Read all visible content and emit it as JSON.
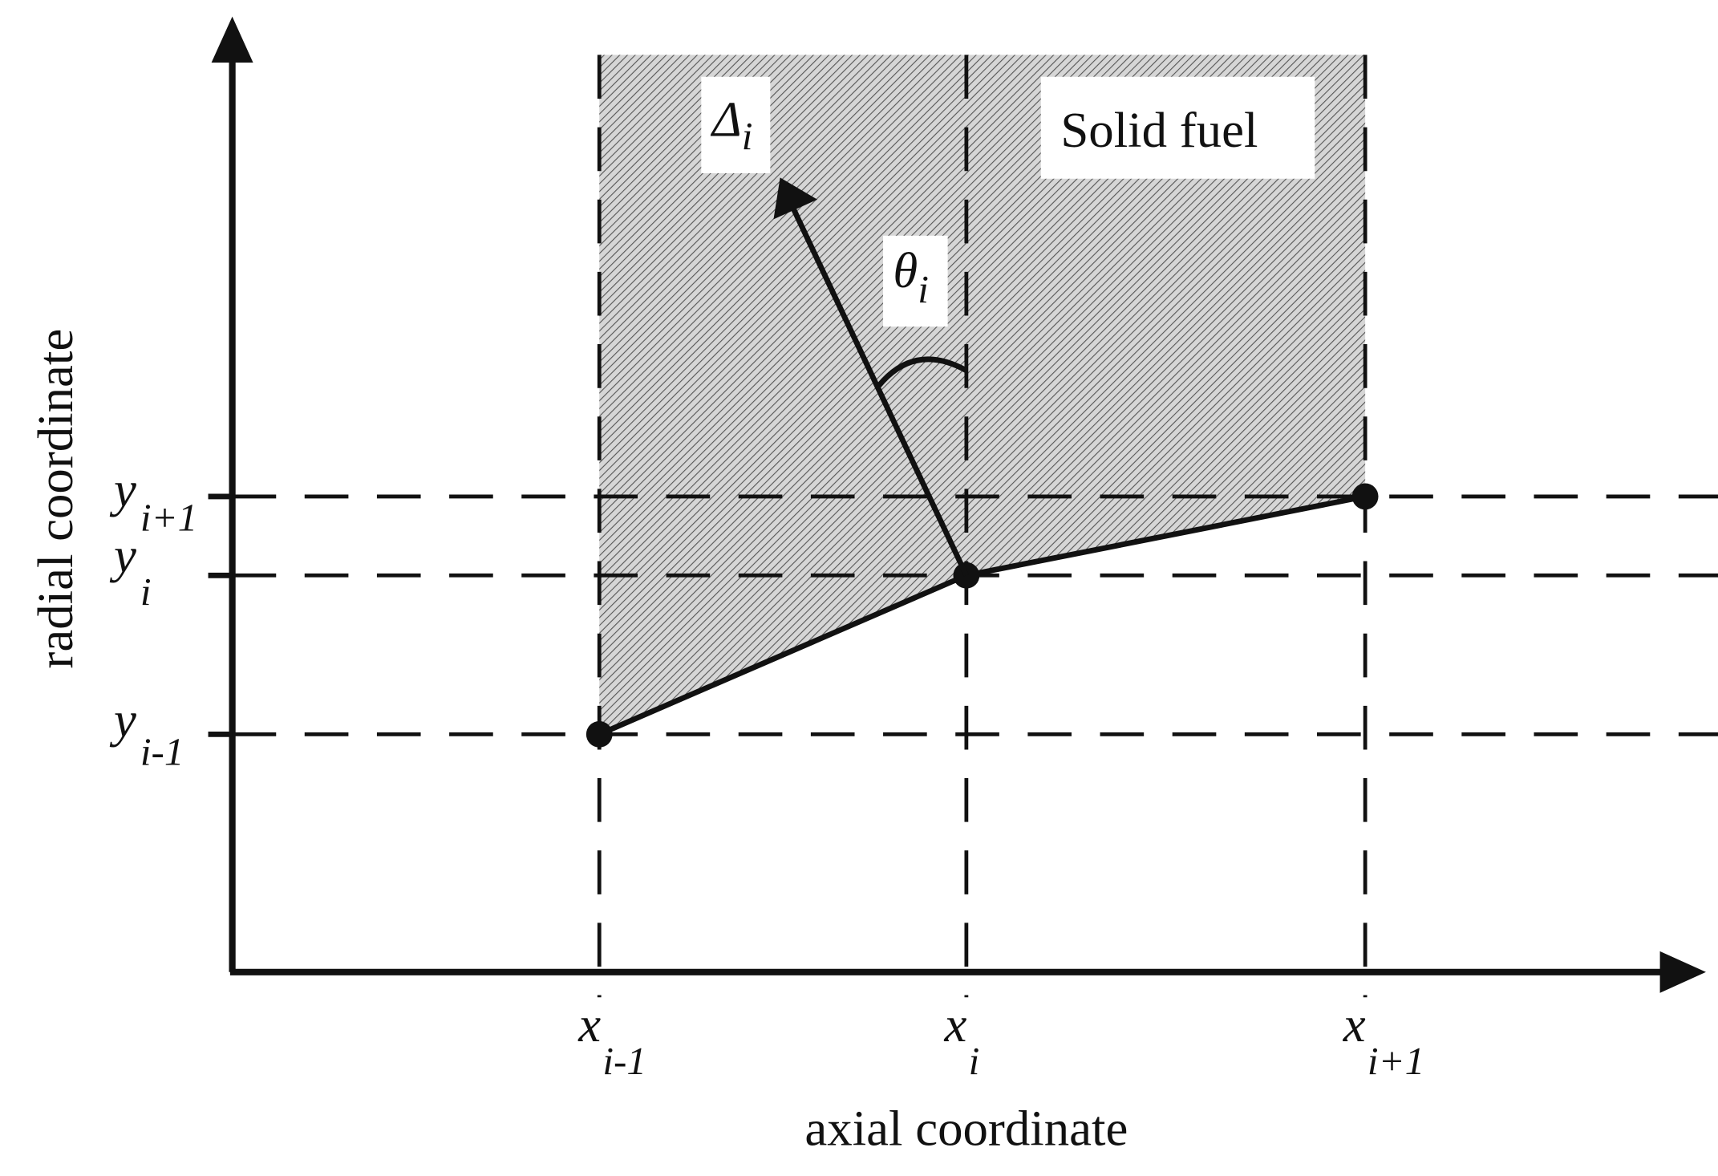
{
  "axes": {
    "radial": "radial coordinate",
    "axial": "axial coordinate"
  },
  "region_label": "Solid fuel",
  "y_labels": [
    {
      "base": "y",
      "sub": "i+1"
    },
    {
      "base": "y",
      "sub": "i"
    },
    {
      "base": "y",
      "sub": "i-1"
    }
  ],
  "x_labels": [
    {
      "base": "x",
      "sub": "i-1"
    },
    {
      "base": "x",
      "sub": "i"
    },
    {
      "base": "x",
      "sub": "i+1"
    }
  ],
  "normal_label": {
    "base": "Δ",
    "sub": "i"
  },
  "angle_label": {
    "base": "θ",
    "sub": "i"
  }
}
